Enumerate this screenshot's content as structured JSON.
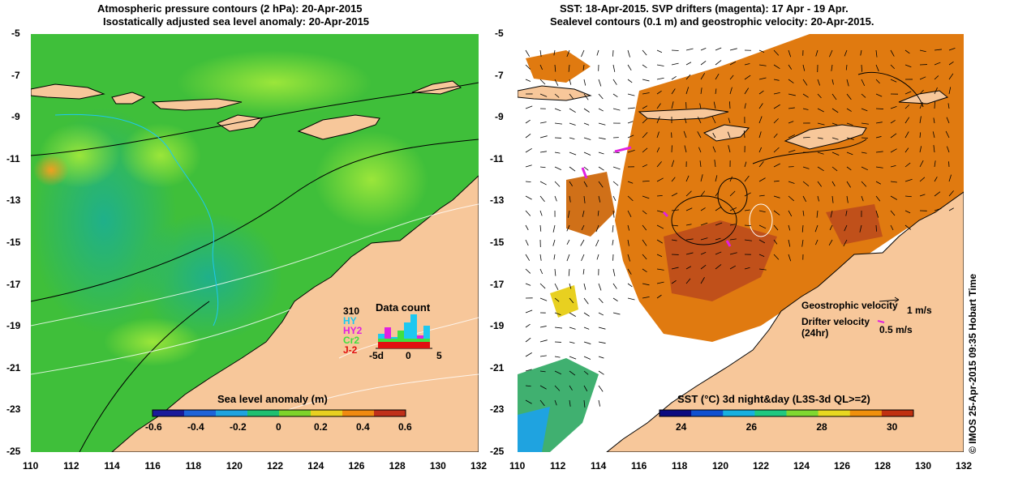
{
  "left_panel": {
    "title_line1": "Atmospheric pressure contours (2 hPa): 20-Apr-2015",
    "title_line2": "Isostatically adjusted sea level anomaly: 20-Apr-2015",
    "colorbar_label": "Sea level anomaly (m)",
    "colorbar_ticks": [
      "-0.6",
      "-0.4",
      "-0.2",
      "0",
      "0.2",
      "0.4",
      "0.6"
    ],
    "colorbar_colors": [
      "#1a1a9a",
      "#1e63d8",
      "#1fa3e0",
      "#20c070",
      "#7ed42a",
      "#e8d020",
      "#f08a10",
      "#c0301a"
    ],
    "inset_title": "Data count",
    "inset_legend": [
      {
        "label": "310",
        "color": "#000000"
      },
      {
        "label": "HY",
        "color": "#1ec8f0"
      },
      {
        "label": "HY2",
        "color": "#e020e0"
      },
      {
        "label": "Cr2",
        "color": "#40e040"
      },
      {
        "label": "J-2",
        "color": "#e01010"
      }
    ],
    "inset_ticks": [
      "-5d",
      "0",
      "5"
    ]
  },
  "right_panel": {
    "title_line1": "SST: 18-Apr-2015. SVP drifters (magenta): 17 Apr - 19 Apr.",
    "title_line2": "Sealevel contours (0.1 m) and geostrophic velocity: 20-Apr-2015.",
    "colorbar_label": "SST (°C) 3d night&day (L3S-3d QL>=2)",
    "colorbar_ticks": [
      "24",
      "26",
      "28",
      "30"
    ],
    "colorbar_colors": [
      "#0a0a80",
      "#1050d0",
      "#18b0e0",
      "#20c880",
      "#80d830",
      "#e8d820",
      "#f0900c",
      "#c03010"
    ],
    "geostrophic_label": "Geostrophic velocity",
    "geostrophic_scale": "1 m/s",
    "drifter_label_1": "Drifter velocity",
    "drifter_label_2": "(24hr)",
    "drifter_scale": "0.5 m/s"
  },
  "axes": {
    "lat_ticks": [
      "-5",
      "-7",
      "-9",
      "-11",
      "-13",
      "-15",
      "-17",
      "-19",
      "-21",
      "-23",
      "-25"
    ],
    "lon_ticks": [
      "110",
      "112",
      "114",
      "116",
      "118",
      "120",
      "122",
      "124",
      "126",
      "128",
      "130",
      "132"
    ]
  },
  "credit": "© IMOS 25-Apr-2015 09:35 Hobart Time",
  "colors": {
    "land": "#f7c79a",
    "ocean_green": "#3fbf3a",
    "sst_orange": "#e07a10",
    "no_data": "#ffffff",
    "drifter": "#e020e0"
  }
}
